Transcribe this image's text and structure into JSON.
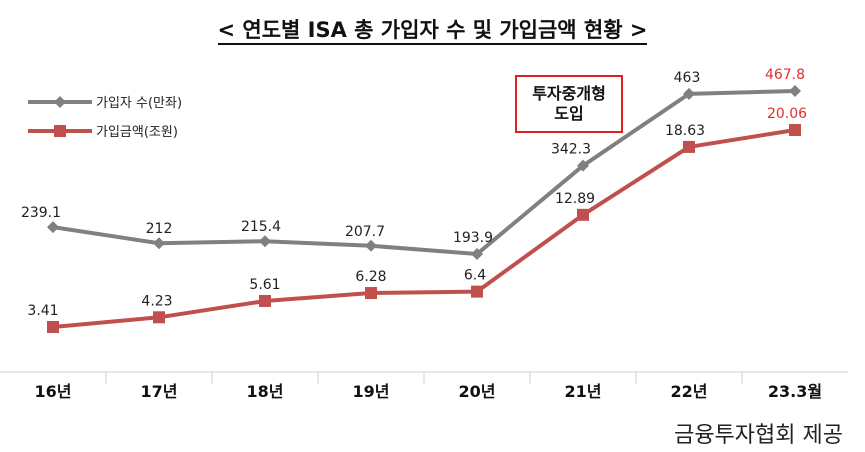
{
  "title": "< 연도별 ISA 총 가입자 수 및 가입금액 현황 >",
  "source": "금융투자협회 제공",
  "callout": {
    "line1": "투자중개형",
    "line2": "도입"
  },
  "colors": {
    "subscribers": "#808080",
    "amount": "#c0504d",
    "last_label": "#e03030",
    "axis": "#d9d9d9"
  },
  "chart_data": {
    "type": "line",
    "categories": [
      "16년",
      "17년",
      "18년",
      "19년",
      "20년",
      "21년",
      "22년",
      "23.3월"
    ],
    "series": [
      {
        "name": "가입자 수(만좌)",
        "values": [
          239.1,
          212,
          215.4,
          207.7,
          193.9,
          342.3,
          463,
          467.8
        ],
        "labels": [
          "239.1",
          "212",
          "215.4",
          "207.7",
          "193.9",
          "342.3",
          "463",
          "467.8"
        ],
        "marker": "diamond"
      },
      {
        "name": "가입금액(조원)",
        "values": [
          3.41,
          4.23,
          5.61,
          6.28,
          6.4,
          12.89,
          18.63,
          20.06
        ],
        "labels": [
          "3.41",
          "4.23",
          "5.61",
          "6.28",
          "6.4",
          "12.89",
          "18.63",
          "20.06"
        ],
        "marker": "square"
      }
    ],
    "legend": "top-left",
    "grid": false
  }
}
